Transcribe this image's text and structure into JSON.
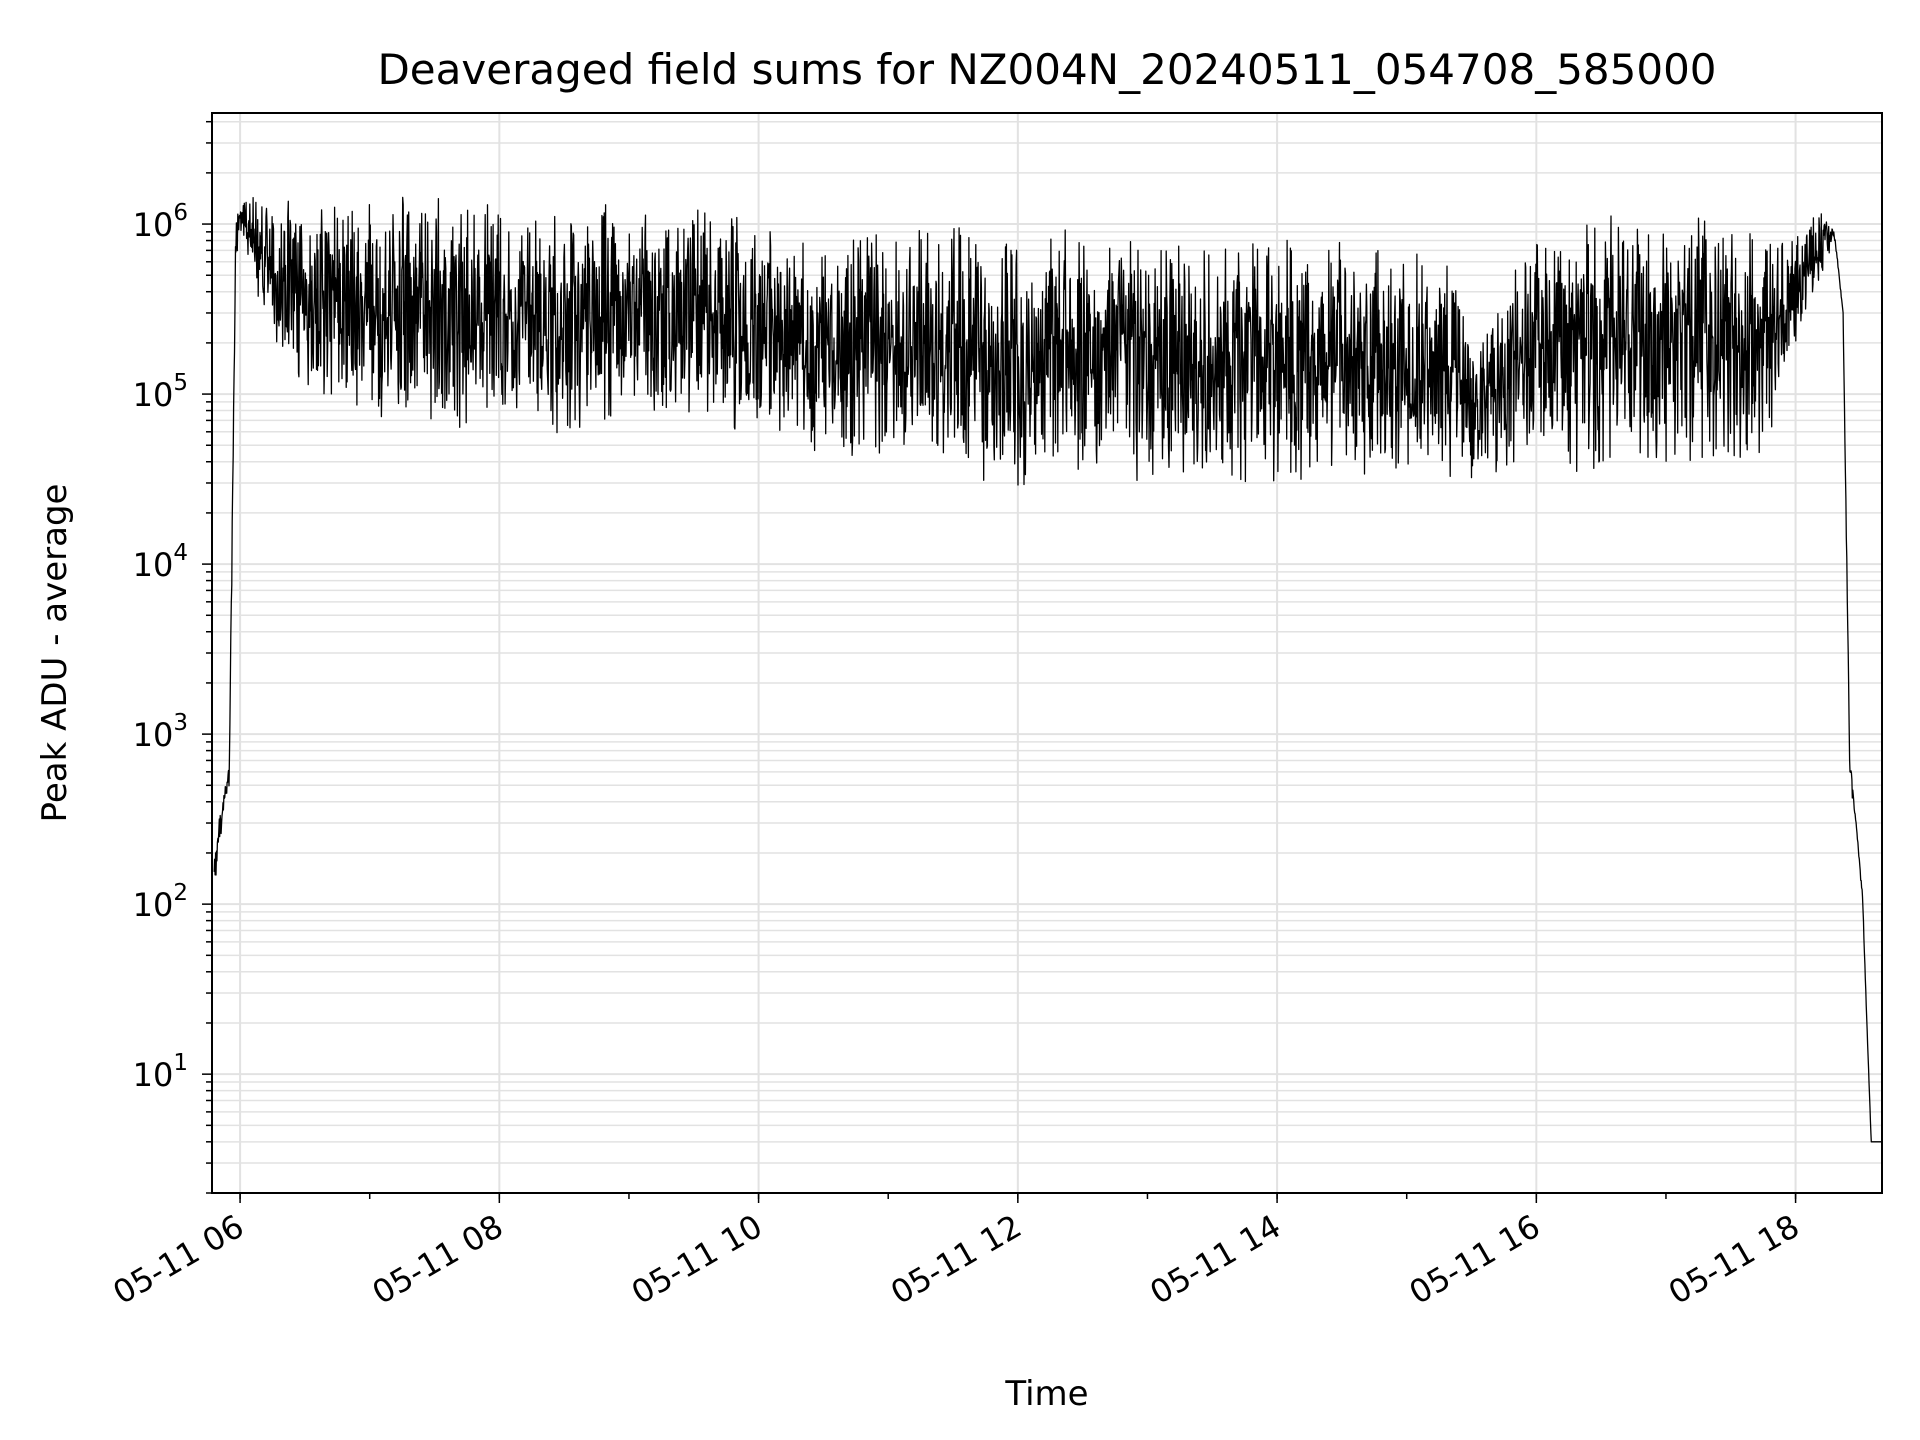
{
  "chart_data": {
    "type": "line",
    "title": "Deaveraged field sums for NZ004N_20240511_054708_585000",
    "xlabel": "Time",
    "ylabel": "Peak ADU - average",
    "x_scale": "time",
    "y_scale": "log",
    "xlim": [
      "2024-05-11 05:47",
      "2024-05-11 18:40"
    ],
    "ylim": [
      2,
      4500000
    ],
    "x_ticks": [
      "05-11 06",
      "05-11 08",
      "05-11 10",
      "05-11 12",
      "05-11 14",
      "05-11 16",
      "05-11 18"
    ],
    "y_ticks": [
      {
        "base": "10",
        "exp": "1",
        "value": 10
      },
      {
        "base": "10",
        "exp": "2",
        "value": 100
      },
      {
        "base": "10",
        "exp": "3",
        "value": 1000
      },
      {
        "base": "10",
        "exp": "4",
        "value": 10000
      },
      {
        "base": "10",
        "exp": "5",
        "value": 100000
      },
      {
        "base": "10",
        "exp": "6",
        "value": 1000000
      }
    ],
    "grid": true,
    "legend": "none",
    "line_color": "#000000",
    "series": [
      {
        "x": [
          "2024-05-11 05:48",
          "2024-05-11 05:52",
          "2024-05-11 05:55",
          "2024-05-11 05:58",
          "2024-05-11 06:00",
          "2024-05-11 06:03",
          "2024-05-11 06:06",
          "2024-05-11 06:10",
          "2024-05-11 06:20",
          "2024-05-11 06:30",
          "2024-05-11 06:45",
          "2024-05-11 07:00",
          "2024-05-11 07:30",
          "2024-05-11 08:00",
          "2024-05-11 08:30",
          "2024-05-11 09:00",
          "2024-05-11 09:30",
          "2024-05-11 10:00",
          "2024-05-11 10:30",
          "2024-05-11 11:00",
          "2024-05-11 11:30",
          "2024-05-11 12:00",
          "2024-05-11 12:30",
          "2024-05-11 13:00",
          "2024-05-11 13:30",
          "2024-05-11 14:00",
          "2024-05-11 14:30",
          "2024-05-11 15:00",
          "2024-05-11 15:25",
          "2024-05-11 15:30",
          "2024-05-11 16:00",
          "2024-05-11 16:30",
          "2024-05-11 17:00",
          "2024-05-11 17:30",
          "2024-05-11 17:45",
          "2024-05-11 18:00",
          "2024-05-11 18:12",
          "2024-05-11 18:18",
          "2024-05-11 18:22",
          "2024-05-11 18:25",
          "2024-05-11 18:28",
          "2024-05-11 18:31",
          "2024-05-11 18:33",
          "2024-05-11 18:35",
          "2024-05-11 18:40"
        ],
        "y_low": [
          120,
          300,
          500,
          400000,
          900000,
          700000,
          400000,
          300000,
          150000,
          100000,
          80000,
          70000,
          65000,
          60000,
          50000,
          70000,
          60000,
          50000,
          40000,
          35000,
          30000,
          28000,
          30000,
          30000,
          28000,
          27000,
          26000,
          30000,
          28000,
          30000,
          35000,
          33000,
          33000,
          33000,
          40000,
          200000,
          500000,
          800000,
          300000,
          1000,
          300,
          100,
          20,
          4,
          4
        ],
        "y_high": [
          200,
          450,
          700,
          1200000,
          1400000,
          1500000,
          1500000,
          1400000,
          1500000,
          1400000,
          1500000,
          1600000,
          1500000,
          1400000,
          1300000,
          1500000,
          1400000,
          1200000,
          1100000,
          1000000,
          1000000,
          1000000,
          1000000,
          1000000,
          900000,
          900000,
          800000,
          700000,
          600000,
          200000,
          900000,
          1300000,
          1300000,
          1300000,
          800000,
          900000,
          1300000,
          1000000,
          300000,
          500,
          300,
          120,
          20,
          4,
          4
        ]
      }
    ]
  }
}
